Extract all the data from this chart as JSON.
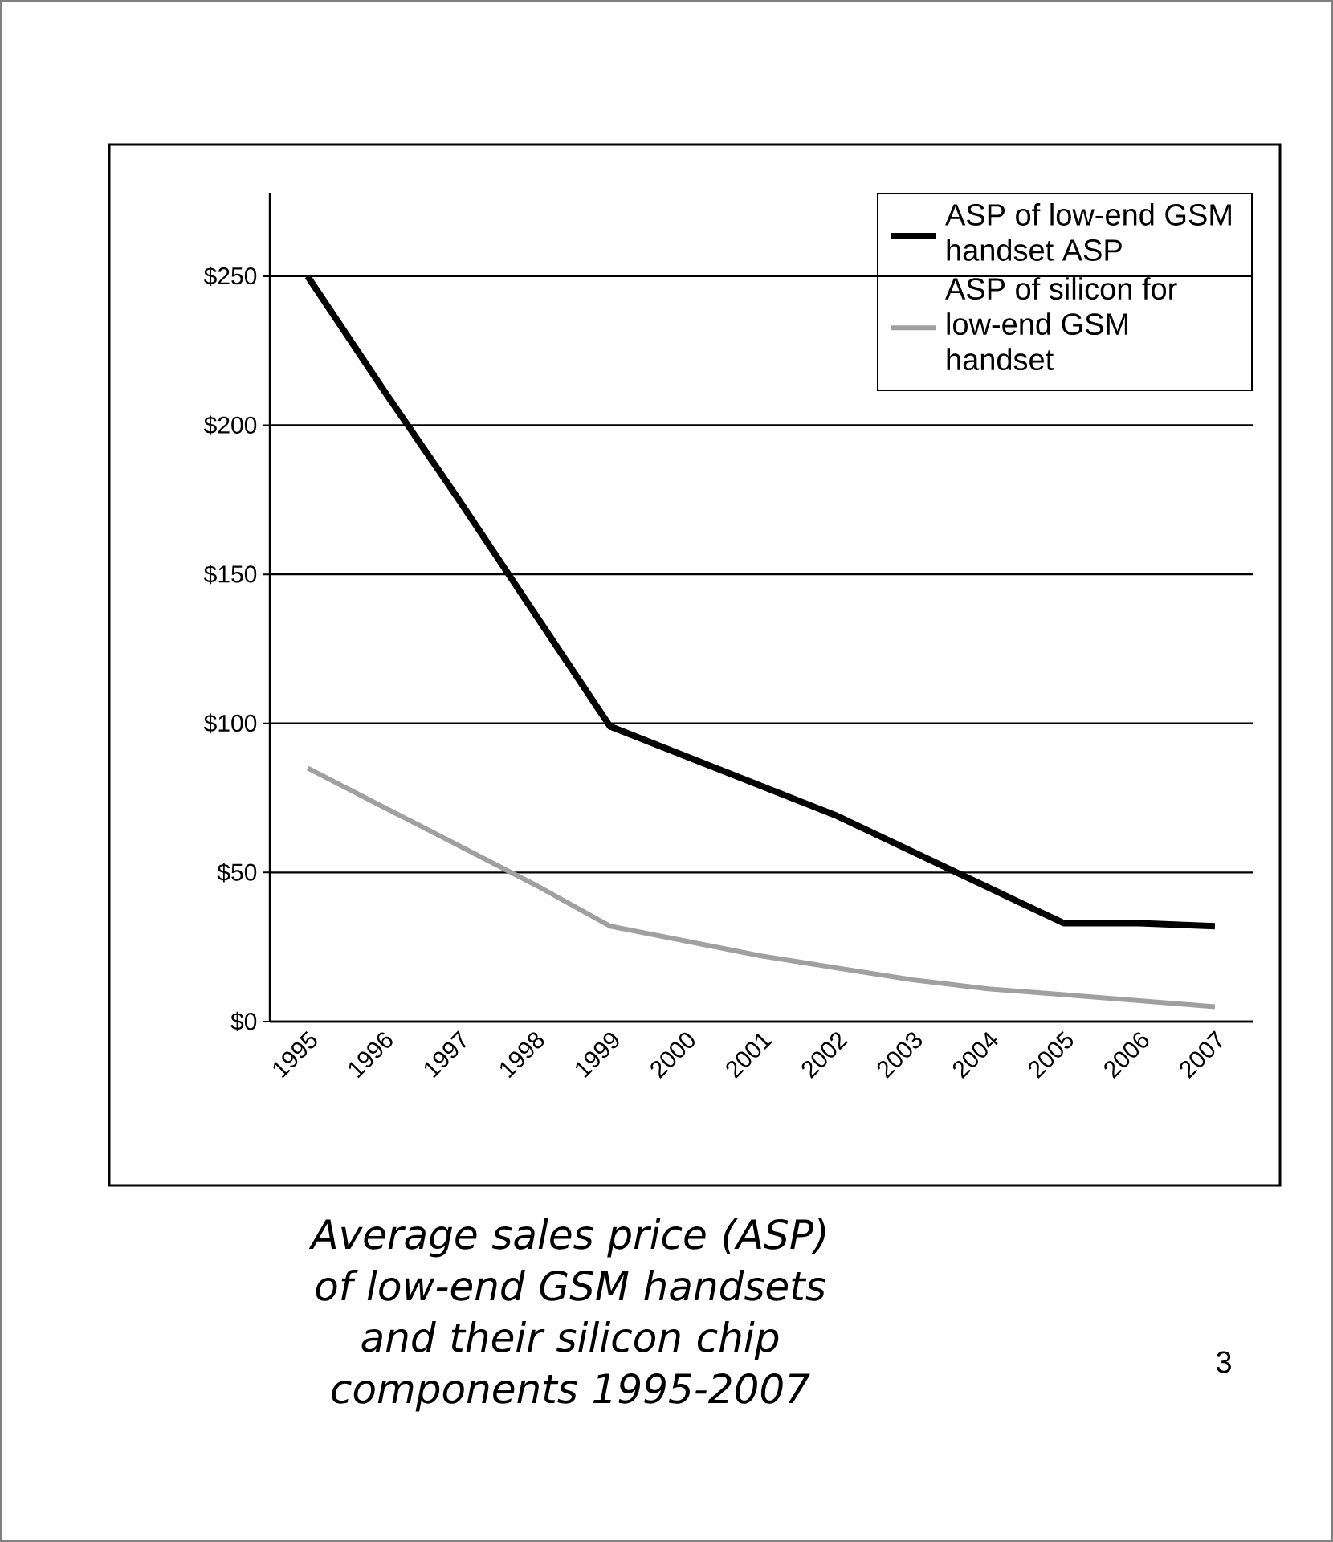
{
  "chart_data": {
    "type": "line",
    "categories": [
      "1995",
      "1996",
      "1997",
      "1998",
      "1999",
      "2000",
      "2001",
      "2002",
      "2003",
      "2004",
      "2005",
      "2006",
      "2007"
    ],
    "series": [
      {
        "name": "ASP of low-end GSM handset ASP",
        "color": "#000000",
        "values": [
          250,
          212,
          175,
          137,
          99,
          89,
          79,
          69,
          57,
          45,
          33,
          33,
          32
        ]
      },
      {
        "name": "ASP of silicon for low-end GSM handset",
        "color": "#a0a0a0",
        "values": [
          85,
          72,
          59,
          46,
          32,
          27,
          22,
          18,
          14,
          11,
          9,
          7,
          5
        ]
      }
    ],
    "ylim": [
      0,
      278
    ],
    "yticks": [
      {
        "value": 0,
        "label": "$0"
      },
      {
        "value": 50,
        "label": "$50"
      },
      {
        "value": 100,
        "label": "$100"
      },
      {
        "value": 150,
        "label": "$150"
      },
      {
        "value": 200,
        "label": "$200"
      },
      {
        "value": 250,
        "label": "$250"
      }
    ],
    "grid": "y",
    "legend": "top right",
    "marker": "none",
    "line_style": "solid",
    "annotations": [
      "Average sales price (ASP) of low-end GSM handsets and their silicon chip components 1995-2007",
      "3"
    ]
  }
}
